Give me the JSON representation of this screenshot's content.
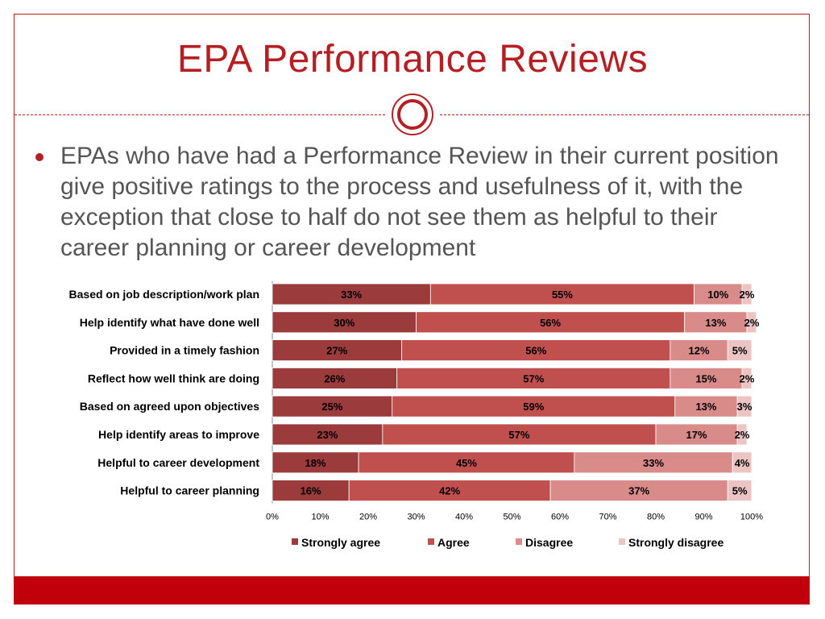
{
  "slide": {
    "title": "EPA Performance Reviews",
    "bullet": "EPAs who have had a Performance Review in their current position give positive ratings to the process and usefulness of it, with the exception that close to half do not see them as helpful to their career planning or career development",
    "accent_color": "#b51f24",
    "bottom_bar_color": "#c0000b"
  },
  "chart_data": {
    "type": "bar",
    "orientation": "horizontal",
    "stacked": true,
    "categories": [
      "Based on job description/work plan",
      "Help identify what have done well",
      "Provided in a timely fashion",
      "Reflect how well think are doing",
      "Based on agreed upon objectives",
      "Help identify areas to improve",
      "Helpful to career development",
      "Helpful to career planning"
    ],
    "series": [
      {
        "name": "Strongly agree",
        "color": "#9b3b3b",
        "values": [
          33,
          30,
          27,
          26,
          25,
          23,
          18,
          16
        ]
      },
      {
        "name": "Agree",
        "color": "#c0504d",
        "values": [
          55,
          56,
          56,
          57,
          59,
          57,
          45,
          42
        ]
      },
      {
        "name": "Disagree",
        "color": "#d98b89",
        "values": [
          10,
          13,
          12,
          15,
          13,
          17,
          33,
          37
        ]
      },
      {
        "name": "Strongly disagree",
        "color": "#ecc4c4",
        "values": [
          2,
          2,
          5,
          2,
          3,
          2,
          4,
          5
        ]
      }
    ],
    "xlim": [
      0,
      100
    ],
    "xticks": [
      "0%",
      "10%",
      "20%",
      "30%",
      "40%",
      "50%",
      "60%",
      "70%",
      "80%",
      "90%",
      "100%"
    ],
    "legend": "bottom",
    "grid": false
  }
}
